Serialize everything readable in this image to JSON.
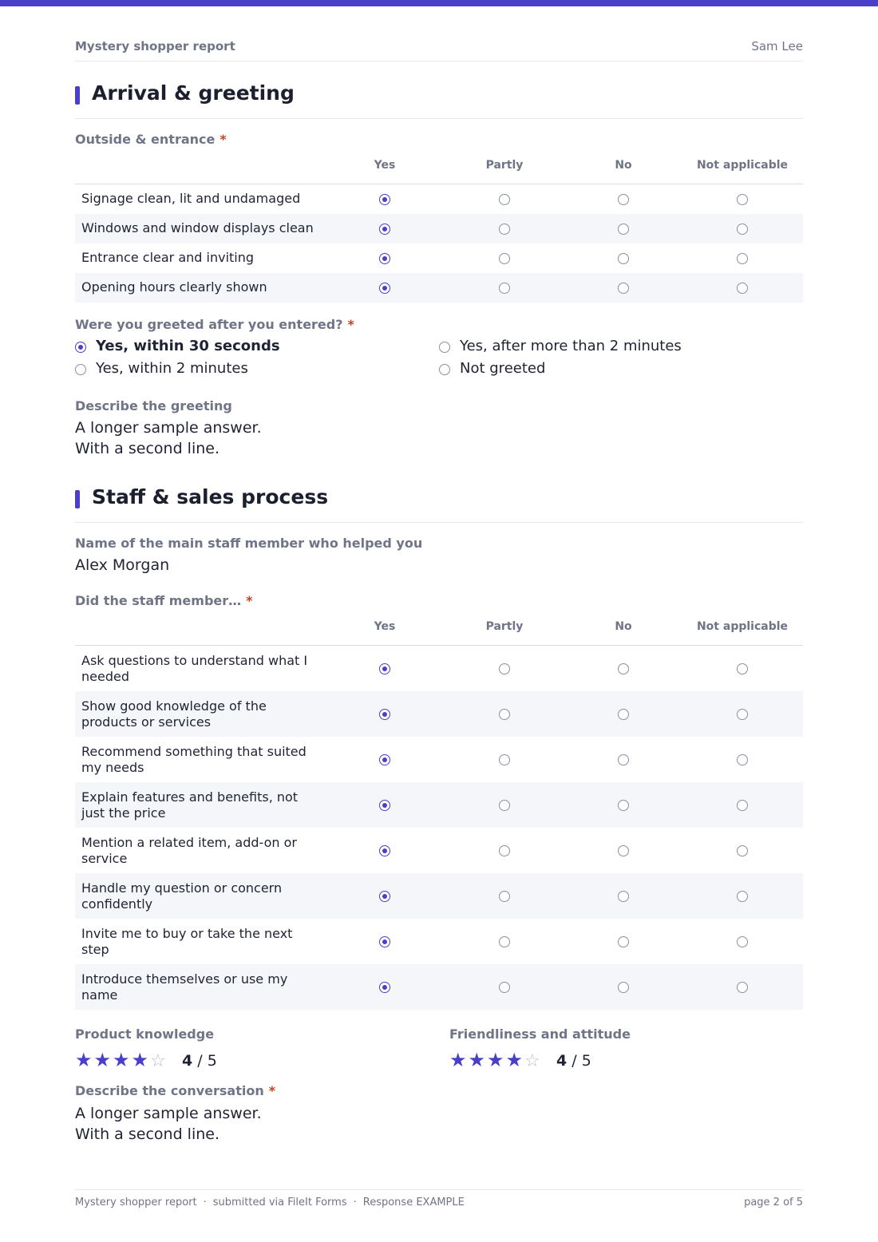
{
  "header": {
    "title": "Mystery shopper report",
    "user": "Sam Lee"
  },
  "sections": [
    {
      "title": "Arrival & greeting"
    },
    {
      "title": "Staff & sales process"
    }
  ],
  "grid_columns": [
    "Yes",
    "Partly",
    "No",
    "Not applicable"
  ],
  "outside": {
    "label": "Outside & entrance",
    "required": "*",
    "rows": [
      {
        "label": "Signage clean, lit and undamaged",
        "selected": "Yes"
      },
      {
        "label": "Windows and window displays clean",
        "selected": "Yes"
      },
      {
        "label": "Entrance clear and inviting",
        "selected": "Yes"
      },
      {
        "label": "Opening hours clearly shown",
        "selected": "Yes"
      }
    ]
  },
  "greeted": {
    "label": "Were you greeted after you entered?",
    "required": "*",
    "options": [
      {
        "label": "Yes, within 30 seconds",
        "selected": true
      },
      {
        "label": "Yes, within 2 minutes",
        "selected": false
      },
      {
        "label": "Yes, after more than 2 minutes",
        "selected": false
      },
      {
        "label": "Not greeted",
        "selected": false
      }
    ]
  },
  "describe_greeting": {
    "label": "Describe the greeting",
    "value": "A longer sample answer.\nWith a second line."
  },
  "staff_name": {
    "label": "Name of the main staff member who helped you",
    "value": "Alex Morgan"
  },
  "did_staff": {
    "label": "Did the staff member…",
    "required": "*",
    "rows": [
      {
        "label": "Ask questions to understand what I needed",
        "selected": "Yes"
      },
      {
        "label": "Show good knowledge of the products or services",
        "selected": "Yes"
      },
      {
        "label": "Recommend something that suited my needs",
        "selected": "Yes"
      },
      {
        "label": "Explain features and benefits, not just the price",
        "selected": "Yes"
      },
      {
        "label": "Mention a related item, add-on or service",
        "selected": "Yes"
      },
      {
        "label": "Handle my question or concern confidently",
        "selected": "Yes"
      },
      {
        "label": "Invite me to buy or take the next step",
        "selected": "Yes"
      },
      {
        "label": "Introduce themselves or use my name",
        "selected": "Yes"
      }
    ]
  },
  "ratings": [
    {
      "label": "Product knowledge",
      "score": "4",
      "max": "/ 5",
      "value": 4,
      "out_of": 5
    },
    {
      "label": "Friendliness and attitude",
      "score": "4",
      "max": "/ 5",
      "value": 4,
      "out_of": 5
    }
  ],
  "describe_conversation": {
    "label": "Describe the conversation",
    "required": "*",
    "value": "A longer sample answer.\nWith a second line."
  },
  "footer": {
    "form_name": "Mystery shopper report",
    "sep": "·",
    "submitted": "submitted via FileIt Forms",
    "response": "Response EXAMPLE",
    "page": "page 2 of 5"
  },
  "colors": {
    "accent": "#4a3fc9",
    "required": "#c0461b",
    "muted": "#6f7486"
  }
}
